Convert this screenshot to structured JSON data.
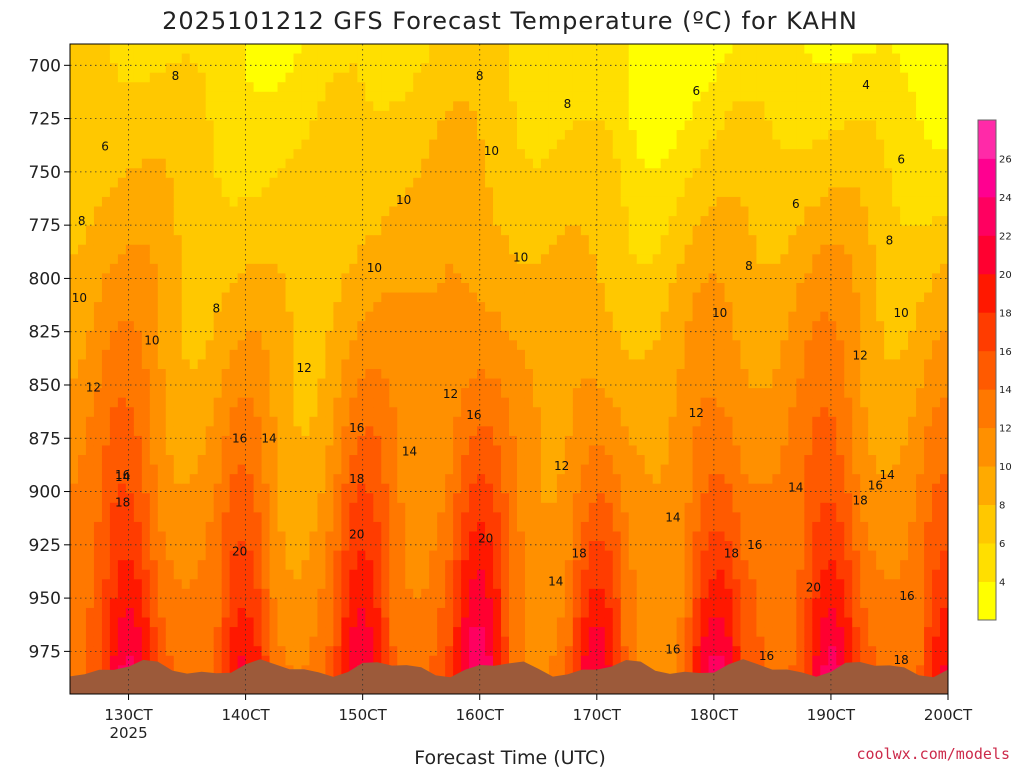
{
  "chart_data": {
    "type": "heatmap",
    "title": "2025101212 GFS Forecast Temperature (ºC) for KAHN",
    "xlabel": "Forecast Time (UTC)",
    "ylabel": "",
    "credit": "coolwx.com/models",
    "x_ticks": [
      "130CT",
      "140CT",
      "150CT",
      "160CT",
      "170CT",
      "180CT",
      "190CT",
      "200CT"
    ],
    "x_tick_year": "2025",
    "y_ticks": [
      700,
      725,
      750,
      775,
      800,
      825,
      850,
      875,
      900,
      925,
      950,
      975
    ],
    "xlim_days": [
      12.5,
      20.0
    ],
    "ylim_hpa": [
      690,
      995
    ],
    "y_direction": "pressure decreasing upward",
    "colorbar_levels": [
      4,
      6,
      8,
      10,
      12,
      14,
      16,
      18,
      20,
      22,
      24,
      26
    ],
    "colorbar_colors": [
      "#ffff00",
      "#ffdf00",
      "#ffc800",
      "#ffaa00",
      "#ff9000",
      "#ff7800",
      "#ff5a00",
      "#ff3c00",
      "#ff1800",
      "#ff0030",
      "#ff0060",
      "#ff0090",
      "#ff2aa8"
    ],
    "contour_labels": [
      {
        "text": "8",
        "day": 13.4,
        "p": 707
      },
      {
        "text": "6",
        "day": 12.8,
        "p": 740
      },
      {
        "text": "8",
        "day": 12.6,
        "p": 775
      },
      {
        "text": "10",
        "day": 12.58,
        "p": 811
      },
      {
        "text": "8",
        "day": 13.75,
        "p": 816
      },
      {
        "text": "10",
        "day": 13.2,
        "p": 831
      },
      {
        "text": "12",
        "day": 12.7,
        "p": 853
      },
      {
        "text": "16",
        "day": 12.95,
        "p": 894
      },
      {
        "text": "14",
        "day": 12.95,
        "p": 895
      },
      {
        "text": "18",
        "day": 12.95,
        "p": 907
      },
      {
        "text": "16",
        "day": 13.95,
        "p": 877
      },
      {
        "text": "14",
        "day": 14.2,
        "p": 877
      },
      {
        "text": "20",
        "day": 13.95,
        "p": 930
      },
      {
        "text": "12",
        "day": 14.5,
        "p": 844
      },
      {
        "text": "10",
        "day": 15.1,
        "p": 797
      },
      {
        "text": "10",
        "day": 15.35,
        "p": 765
      },
      {
        "text": "16",
        "day": 14.95,
        "p": 872
      },
      {
        "text": "14",
        "day": 15.4,
        "p": 883
      },
      {
        "text": "18",
        "day": 14.95,
        "p": 896
      },
      {
        "text": "20",
        "day": 14.95,
        "p": 922
      },
      {
        "text": "10",
        "day": 16.1,
        "p": 742
      },
      {
        "text": "10",
        "day": 16.35,
        "p": 792
      },
      {
        "text": "8",
        "day": 16.0,
        "p": 707
      },
      {
        "text": "8",
        "day": 16.75,
        "p": 720
      },
      {
        "text": "12",
        "day": 15.75,
        "p": 856
      },
      {
        "text": "16",
        "day": 15.95,
        "p": 866
      },
      {
        "text": "20",
        "day": 16.05,
        "p": 924
      },
      {
        "text": "12",
        "day": 16.7,
        "p": 890
      },
      {
        "text": "14",
        "day": 16.65,
        "p": 944
      },
      {
        "text": "18",
        "day": 16.85,
        "p": 931
      },
      {
        "text": "6",
        "day": 17.85,
        "p": 714
      },
      {
        "text": "10",
        "day": 18.05,
        "p": 818
      },
      {
        "text": "8",
        "day": 18.3,
        "p": 796
      },
      {
        "text": "12",
        "day": 17.85,
        "p": 865
      },
      {
        "text": "14",
        "day": 17.65,
        "p": 914
      },
      {
        "text": "18",
        "day": 18.15,
        "p": 931
      },
      {
        "text": "16",
        "day": 18.35,
        "p": 927
      },
      {
        "text": "16",
        "day": 17.65,
        "p": 976
      },
      {
        "text": "6",
        "day": 18.7,
        "p": 767
      },
      {
        "text": "8",
        "day": 19.5,
        "p": 784
      },
      {
        "text": "10",
        "day": 19.6,
        "p": 818
      },
      {
        "text": "12",
        "day": 19.25,
        "p": 838
      },
      {
        "text": "14",
        "day": 19.48,
        "p": 894
      },
      {
        "text": "14",
        "day": 18.7,
        "p": 900
      },
      {
        "text": "16",
        "day": 19.38,
        "p": 899
      },
      {
        "text": "18",
        "day": 19.25,
        "p": 906
      },
      {
        "text": "20",
        "day": 18.85,
        "p": 947
      },
      {
        "text": "16",
        "day": 18.45,
        "p": 979
      },
      {
        "text": "4",
        "day": 19.3,
        "p": 711
      },
      {
        "text": "6",
        "day": 19.6,
        "p": 746
      },
      {
        "text": "16",
        "day": 19.65,
        "p": 951
      },
      {
        "text": "18",
        "day": 19.6,
        "p": 981
      }
    ]
  }
}
